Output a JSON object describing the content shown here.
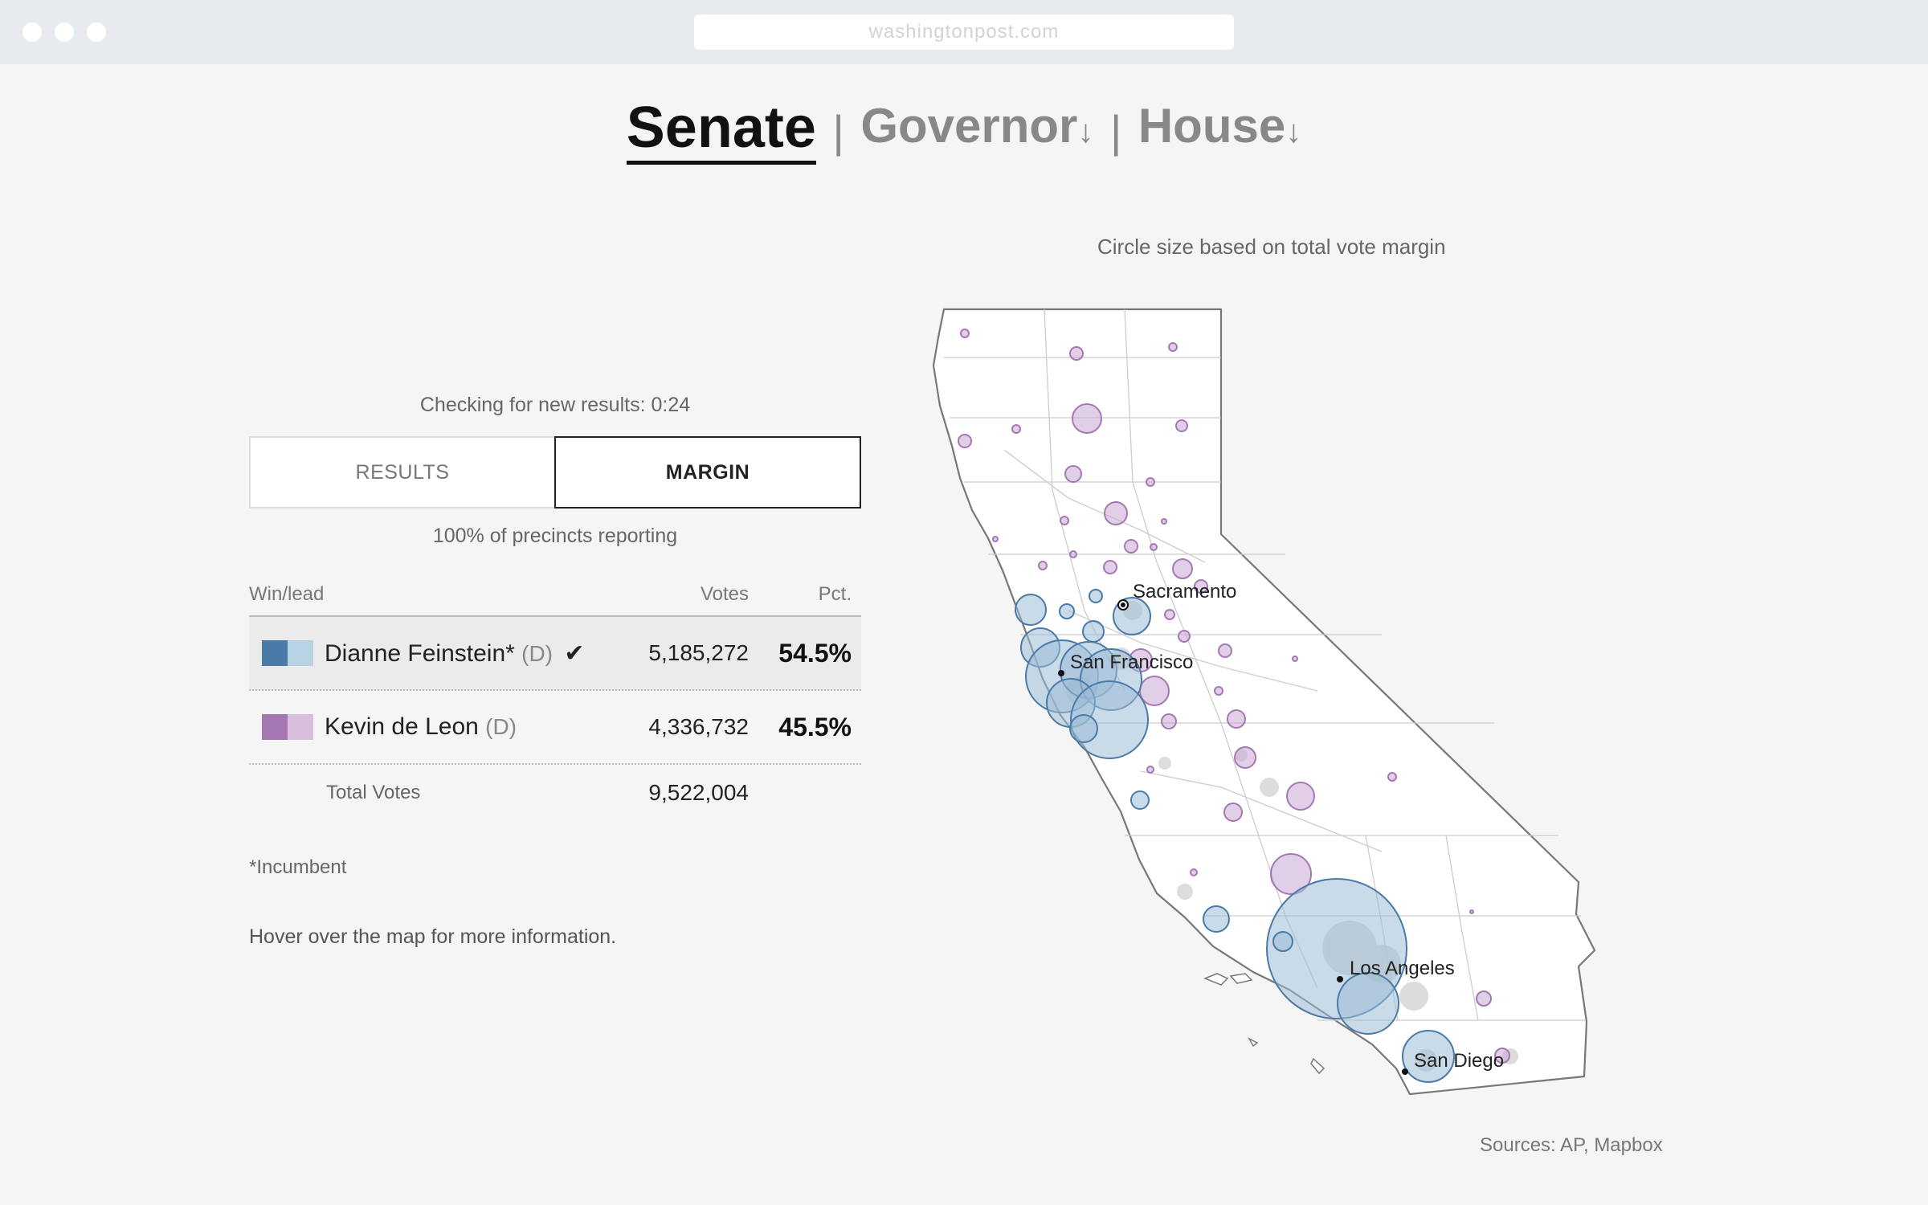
{
  "browser": {
    "url": "washingtonpost.com"
  },
  "race_tabs": [
    {
      "label": "Senate",
      "active": true
    },
    {
      "label": "Governor",
      "arrow": "↓",
      "active": false
    },
    {
      "label": "House",
      "arrow": "↓",
      "active": false
    }
  ],
  "separator": "|",
  "status": {
    "checking": "Checking for new results: 0:24",
    "reporting": "100% of precincts reporting"
  },
  "view_toggle": {
    "results_label": "RESULTS",
    "margin_label": "MARGIN",
    "selected": "MARGIN"
  },
  "table": {
    "headers": {
      "name": "Win/lead",
      "votes": "Votes",
      "pct": "Pct."
    },
    "candidates": [
      {
        "name": "Dianne Feinstein*",
        "party": "(D)",
        "winner": true,
        "votes": "5,185,272",
        "pct": "54.5%",
        "colors": [
          "#4a7aa8",
          "#b7d2e3"
        ]
      },
      {
        "name": "Kevin de Leon",
        "party": "(D)",
        "winner": false,
        "votes": "4,336,732",
        "pct": "45.5%",
        "colors": [
          "#a578b4",
          "#d9bfde"
        ]
      }
    ],
    "total_label": "Total Votes",
    "total_votes": "9,522,004",
    "check_icon": "checkmark-icon"
  },
  "footnote": "*Incumbent",
  "hover_note": "Hover over the map for more information.",
  "map": {
    "caption": "Circle size based on total vote margin",
    "cities": [
      "Sacramento",
      "San Francisco",
      "Los Angeles",
      "San Diego"
    ],
    "legend_colors": {
      "feinstein": "#4a7aa8",
      "de_leon": "#a578b4"
    }
  },
  "sources": "Sources: AP, Mapbox"
}
